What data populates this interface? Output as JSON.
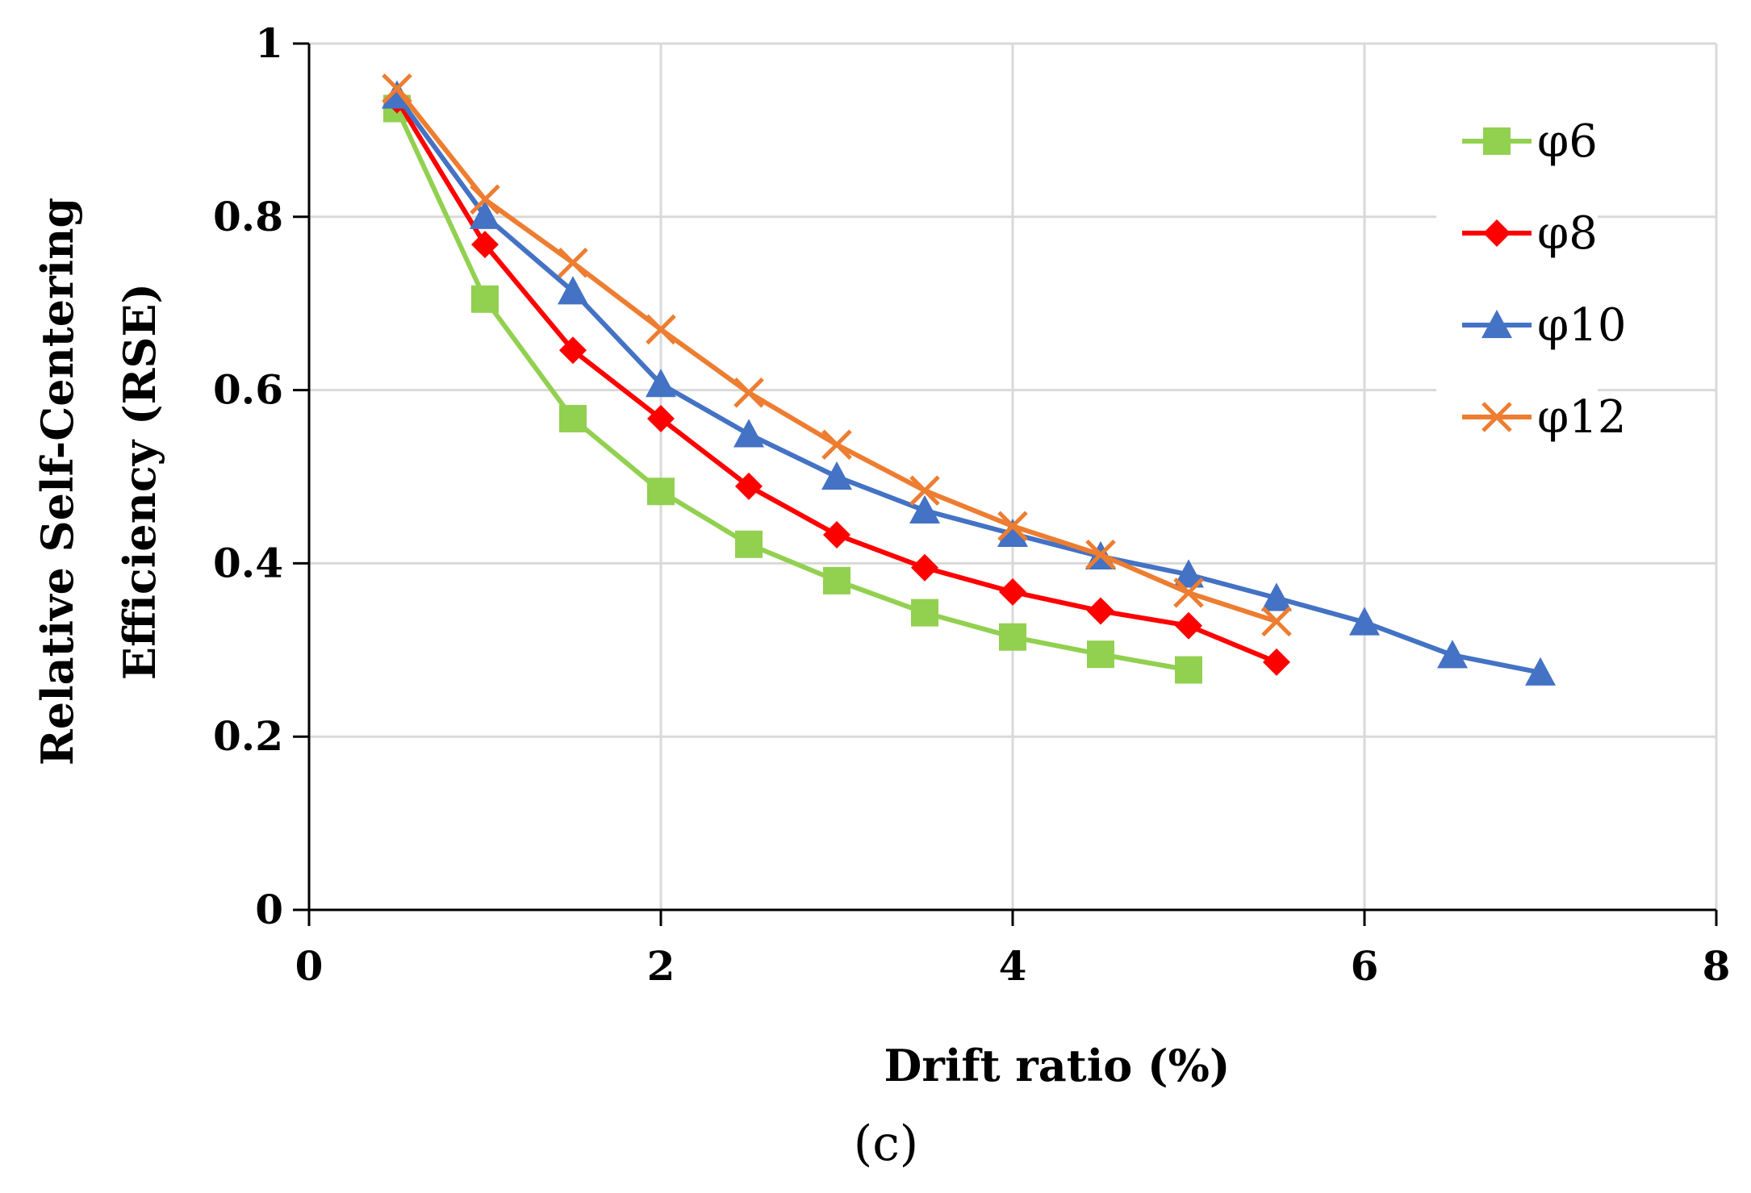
{
  "chart_data": {
    "type": "line",
    "title": "",
    "xlabel": "Drift ratio (%)",
    "ylabel_line1": "Relative Self-Centering",
    "ylabel_line2": "Efficiency (RSE)",
    "caption": "(c)",
    "xlim": [
      0,
      8
    ],
    "ylim": [
      0,
      1
    ],
    "xticks": [
      "0",
      "2",
      "4",
      "6",
      "8"
    ],
    "yticks": [
      "0",
      "0.2",
      "0.4",
      "0.6",
      "0.8",
      "1"
    ],
    "grid": true,
    "legend_position": "top-right",
    "series": [
      {
        "name": "φ6",
        "color": "#92d050",
        "marker": "square",
        "x": [
          0.5,
          1,
          1.5,
          2,
          2.5,
          3,
          3.5,
          4,
          4.5,
          5
        ],
        "y": [
          0.925,
          0.705,
          0.567,
          0.483,
          0.422,
          0.38,
          0.343,
          0.315,
          0.295,
          0.277
        ]
      },
      {
        "name": "φ8",
        "color": "#ff0000",
        "marker": "diamond",
        "x": [
          0.5,
          1,
          1.5,
          2,
          2.5,
          3,
          3.5,
          4,
          4.5,
          5,
          5.5
        ],
        "y": [
          0.935,
          0.768,
          0.646,
          0.567,
          0.489,
          0.433,
          0.395,
          0.367,
          0.345,
          0.328,
          0.286
        ]
      },
      {
        "name": "φ10",
        "color": "#4472c4",
        "marker": "triangle",
        "x": [
          0.5,
          1,
          1.5,
          2,
          2.5,
          3,
          3.5,
          4,
          4.5,
          5,
          5.5,
          6,
          6.5,
          7
        ],
        "y": [
          0.94,
          0.801,
          0.714,
          0.607,
          0.549,
          0.5,
          0.461,
          0.434,
          0.408,
          0.387,
          0.36,
          0.332,
          0.294,
          0.274
        ]
      },
      {
        "name": "φ12",
        "color": "#ed7d31",
        "marker": "x",
        "x": [
          0.5,
          1,
          1.5,
          2,
          2.5,
          3,
          3.5,
          4,
          4.5,
          5,
          5.5
        ],
        "y": [
          0.948,
          0.82,
          0.747,
          0.67,
          0.597,
          0.537,
          0.484,
          0.443,
          0.41,
          0.366,
          0.333
        ]
      }
    ]
  }
}
